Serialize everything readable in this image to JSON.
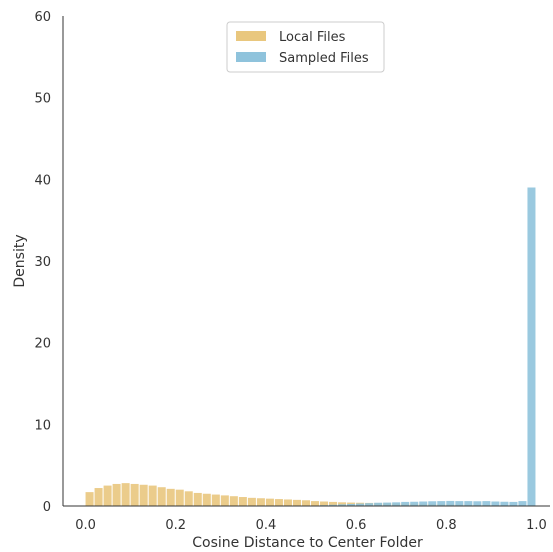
{
  "chart_data": {
    "type": "bar",
    "title": "",
    "xlabel": "Cosine Distance to Center Folder",
    "ylabel": "Density",
    "xlim": [
      -0.05,
      1.03
    ],
    "ylim": [
      0,
      60
    ],
    "xticks": [
      "0.0",
      "0.2",
      "0.4",
      "0.6",
      "0.8",
      "1.0"
    ],
    "yticks": [
      "0",
      "10",
      "20",
      "30",
      "40",
      "50",
      "60"
    ],
    "grid": false,
    "legend_position": "top-center",
    "bin_width": 0.02,
    "series": [
      {
        "name": "Local Files",
        "color": "#e9c77e",
        "bin_starts": [
          0.0,
          0.02,
          0.04,
          0.06,
          0.08,
          0.1,
          0.12,
          0.14,
          0.16,
          0.18,
          0.2,
          0.22,
          0.24,
          0.26,
          0.28,
          0.3,
          0.32,
          0.34,
          0.36,
          0.38,
          0.4,
          0.42,
          0.44,
          0.46,
          0.48,
          0.5,
          0.52,
          0.54,
          0.56,
          0.58,
          0.6,
          0.62,
          0.64,
          0.66,
          0.68,
          0.7,
          0.72,
          0.74,
          0.76,
          0.78,
          0.8,
          0.82,
          0.84,
          0.86,
          0.88,
          0.9,
          0.92,
          0.94,
          0.96,
          0.98
        ],
        "values": [
          1.7,
          2.2,
          2.5,
          2.7,
          2.8,
          2.7,
          2.6,
          2.5,
          2.3,
          2.1,
          2.0,
          1.8,
          1.6,
          1.5,
          1.4,
          1.3,
          1.2,
          1.1,
          1.0,
          0.95,
          0.9,
          0.85,
          0.8,
          0.75,
          0.7,
          0.6,
          0.55,
          0.5,
          0.45,
          0.42,
          0.4,
          0.38,
          0.36,
          0.34,
          0.32,
          0.3,
          0.28,
          0.26,
          0.24,
          0.22,
          0.2,
          0.18,
          0.16,
          0.14,
          0.12,
          0.1,
          0.08,
          0.06,
          0.05,
          0.04
        ]
      },
      {
        "name": "Sampled Files",
        "color": "#8fc3dc",
        "bin_starts": [
          0.5,
          0.52,
          0.54,
          0.56,
          0.58,
          0.6,
          0.62,
          0.64,
          0.66,
          0.68,
          0.7,
          0.72,
          0.74,
          0.76,
          0.78,
          0.8,
          0.82,
          0.84,
          0.86,
          0.88,
          0.9,
          0.92,
          0.94,
          0.96,
          0.98
        ],
        "values": [
          0.05,
          0.1,
          0.15,
          0.2,
          0.25,
          0.3,
          0.35,
          0.4,
          0.42,
          0.45,
          0.5,
          0.52,
          0.55,
          0.58,
          0.6,
          0.62,
          0.6,
          0.6,
          0.58,
          0.6,
          0.55,
          0.52,
          0.5,
          0.6,
          39.0
        ]
      }
    ]
  }
}
